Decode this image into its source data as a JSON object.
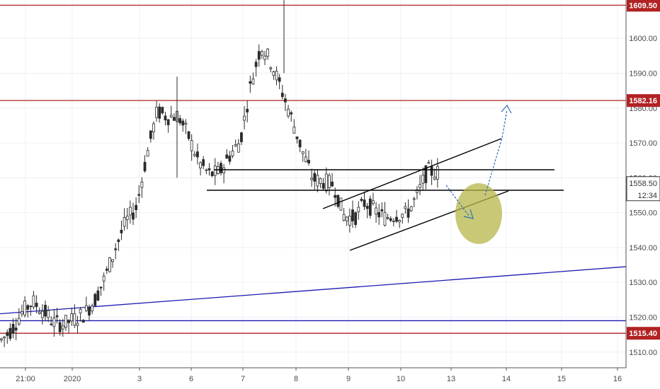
{
  "chart_data": {
    "type": "candlestick",
    "y_axis": {
      "range": [
        1505.5,
        1611
      ],
      "ticks": [
        "1510.00",
        "1520.00",
        "1530.00",
        "1540.00",
        "1550.00",
        "1560.00",
        "1570.00",
        "1580.00",
        "1590.00",
        "1600.00"
      ]
    },
    "x_axis": {
      "labels": [
        "21:00",
        "2020",
        "3",
        "6",
        "7",
        "8",
        "9",
        "10",
        "13",
        "14",
        "15",
        "16"
      ]
    },
    "price_levels": [
      {
        "value": 1609.5,
        "label": "1609.50",
        "color": "#b22222"
      },
      {
        "value": 1582.16,
        "label": "1582.16",
        "color": "#b22222"
      },
      {
        "value": 1515.4,
        "label": "1515.40",
        "color": "#b22222"
      }
    ],
    "blue_levels": [
      {
        "value": 1519.0,
        "color": "#1a1ab0"
      }
    ],
    "blue_trendline": {
      "from": 1521.0,
      "to": 1534.5,
      "color": "#1a1ab0"
    },
    "current_price": {
      "label": "1558.50",
      "value": 1558.5,
      "timer": "12:34"
    },
    "candles_summary": [
      [
        1512,
        1515
      ],
      [
        1515,
        1518
      ],
      [
        1518,
        1525
      ],
      [
        1525,
        1524
      ],
      [
        1524,
        1520
      ],
      [
        1520,
        1517
      ],
      [
        1517,
        1519
      ],
      [
        1519,
        1520
      ],
      [
        1520,
        1522
      ],
      [
        1522,
        1528
      ],
      [
        1528,
        1535
      ],
      [
        1535,
        1545
      ],
      [
        1545,
        1550
      ],
      [
        1550,
        1553
      ],
      [
        1553,
        1580
      ],
      [
        1580,
        1578
      ],
      [
        1578,
        1577
      ],
      [
        1577,
        1579
      ],
      [
        1579,
        1565
      ],
      [
        1565,
        1564
      ],
      [
        1564,
        1558
      ],
      [
        1558,
        1565
      ],
      [
        1565,
        1568
      ],
      [
        1568,
        1573
      ],
      [
        1573,
        1600
      ],
      [
        1600,
        1596
      ],
      [
        1596,
        1590
      ],
      [
        1590,
        1580
      ],
      [
        1580,
        1573
      ],
      [
        1573,
        1562
      ],
      [
        1562,
        1557
      ],
      [
        1557,
        1561
      ],
      [
        1561,
        1555
      ],
      [
        1555,
        1543
      ],
      [
        1543,
        1554
      ],
      [
        1554,
        1552
      ],
      [
        1552,
        1549
      ],
      [
        1549,
        1548
      ],
      [
        1548,
        1551
      ],
      [
        1551,
        1548
      ],
      [
        1548,
        1561
      ],
      [
        1561,
        1563
      ],
      [
        1563,
        1560
      ]
    ],
    "highlight_ellipse": {
      "color": "#b5b54a"
    },
    "grid": true
  }
}
